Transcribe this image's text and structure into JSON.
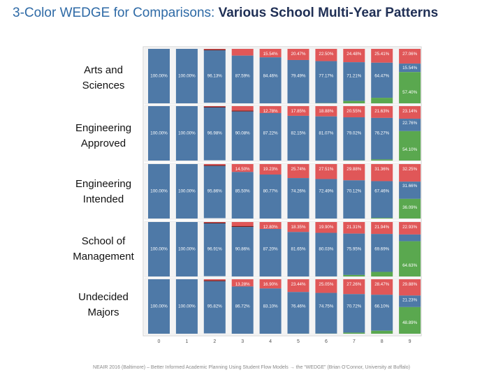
{
  "title": {
    "part1": "3-Color WEDGE for Comparisons:",
    "part2": "Various School Multi-Year Patterns"
  },
  "footer": "NEAIR 2016 (Baltimore) – Better Informed Academic Planning Using Student Flow Models → the “WEDGE” (Brian O’Connor, University at Buffalo)",
  "colors": {
    "blue": "#4e79a7",
    "red": "#e05758",
    "green": "#5aa84f",
    "dark_segment": "#6b1f1f"
  },
  "chart_data": {
    "type": "stacked-bar",
    "categories": [
      "0",
      "1",
      "2",
      "3",
      "4",
      "5",
      "6",
      "7",
      "8",
      "9"
    ],
    "ylim": [
      0,
      100
    ],
    "panels": [
      {
        "label_lines": [
          "Arts and",
          "Sciences"
        ],
        "red": [
          null,
          null,
          null,
          null,
          "15.54%",
          "20.47%",
          "22.50%",
          "24.48%",
          "25.41%",
          "27.06%"
        ],
        "blue": [
          "100.00%",
          "100.00%",
          "96.13%",
          "87.59%",
          "84.46%",
          "79.49%",
          "77.17%",
          "71.21%",
          "64.47%",
          "15.54%"
        ],
        "green": [
          null,
          null,
          null,
          null,
          null,
          null,
          null,
          null,
          null,
          "57.40%"
        ],
        "values": {
          "blue": [
            100.0,
            100.0,
            96.13,
            87.59,
            84.46,
            79.49,
            77.17,
            71.21,
            64.47,
            15.54
          ],
          "red": [
            0,
            0,
            2.8,
            12.4,
            15.54,
            20.47,
            22.5,
            24.48,
            25.41,
            27.06
          ],
          "green": [
            0,
            0,
            0,
            0,
            0,
            0.04,
            0.33,
            4.31,
            10.12,
            57.4
          ]
        }
      },
      {
        "label_lines": [
          "Engineering",
          "Approved"
        ],
        "red": [
          null,
          null,
          null,
          null,
          "12.78%",
          "17.85%",
          "18.88%",
          "20.55%",
          "21.63%",
          "23.14%"
        ],
        "blue": [
          "100.00%",
          "100.00%",
          "96.98%",
          "90.08%",
          "87.22%",
          "82.15%",
          "81.07%",
          "79.02%",
          "76.27%",
          "22.76%"
        ],
        "green": [
          null,
          null,
          null,
          null,
          null,
          null,
          null,
          null,
          null,
          "54.10%"
        ],
        "values": {
          "blue": [
            100.0,
            100.0,
            96.98,
            90.08,
            87.22,
            82.15,
            81.07,
            79.02,
            76.27,
            22.76
          ],
          "red": [
            0,
            0,
            2.5,
            9.9,
            12.78,
            17.85,
            18.88,
            20.55,
            21.63,
            23.14
          ],
          "green": [
            0,
            0,
            0,
            0,
            0,
            0,
            0.05,
            0.43,
            2.1,
            54.1
          ]
        }
      },
      {
        "label_lines": [
          "Engineering",
          "Intended"
        ],
        "red": [
          null,
          null,
          null,
          "14.50%",
          "19.23%",
          "25.74%",
          "27.51%",
          "29.88%",
          "31.36%",
          "32.25%"
        ],
        "blue": [
          "100.00%",
          "100.00%",
          "95.86%",
          "85.50%",
          "80.77%",
          "74.26%",
          "72.49%",
          "70.12%",
          "67.46%",
          "31.66%"
        ],
        "green": [
          null,
          null,
          null,
          null,
          null,
          null,
          null,
          null,
          null,
          "36.09%"
        ],
        "values": {
          "blue": [
            100.0,
            100.0,
            95.86,
            85.5,
            80.77,
            74.26,
            72.49,
            70.12,
            67.46,
            31.66
          ],
          "red": [
            0,
            0,
            3.5,
            14.5,
            19.23,
            25.74,
            27.51,
            29.88,
            31.36,
            32.25
          ],
          "green": [
            0,
            0,
            0,
            0,
            0,
            0,
            0,
            0,
            1.18,
            36.09
          ]
        }
      },
      {
        "label_lines": [
          "School of",
          "Management"
        ],
        "red": [
          null,
          null,
          null,
          null,
          "12.80%",
          "18.35%",
          "19.90%",
          "21.31%",
          "21.94%",
          "22.93%"
        ],
        "blue": [
          "100.00%",
          "100.00%",
          "96.91%",
          "90.86%",
          "87.20%",
          "81.65%",
          "80.03%",
          "75.95%",
          "69.69%",
          null
        ],
        "green": [
          null,
          null,
          null,
          null,
          null,
          null,
          null,
          null,
          null,
          "64.63%"
        ],
        "values": {
          "blue": [
            100.0,
            100.0,
            96.91,
            90.86,
            87.2,
            81.65,
            80.03,
            75.95,
            69.69,
            12.44
          ],
          "red": [
            0,
            0,
            2.6,
            9.1,
            12.8,
            18.35,
            19.9,
            21.31,
            21.94,
            22.93
          ],
          "green": [
            0,
            0,
            0,
            0,
            0,
            0,
            0.07,
            2.74,
            8.37,
            64.63
          ]
        }
      },
      {
        "label_lines": [
          "Undecided",
          "Majors"
        ],
        "red": [
          null,
          null,
          null,
          "13.28%",
          "16.90%",
          "23.44%",
          "25.05%",
          "27.26%",
          "28.47%",
          "29.88%"
        ],
        "blue": [
          "100.00%",
          "100.00%",
          "95.82%",
          "86.72%",
          "83.10%",
          "76.46%",
          "74.75%",
          "70.72%",
          "66.10%",
          "21.23%"
        ],
        "green": [
          null,
          null,
          null,
          null,
          null,
          null,
          null,
          null,
          null,
          "48.89%"
        ],
        "values": {
          "blue": [
            100.0,
            100.0,
            95.82,
            86.72,
            83.1,
            76.46,
            74.75,
            70.72,
            66.1,
            21.23
          ],
          "red": [
            0,
            0,
            3.6,
            13.28,
            16.9,
            23.44,
            25.05,
            27.26,
            28.47,
            29.88
          ],
          "green": [
            0,
            0,
            0,
            0,
            0,
            0.1,
            0.2,
            2.02,
            5.43,
            48.89
          ]
        }
      }
    ]
  }
}
